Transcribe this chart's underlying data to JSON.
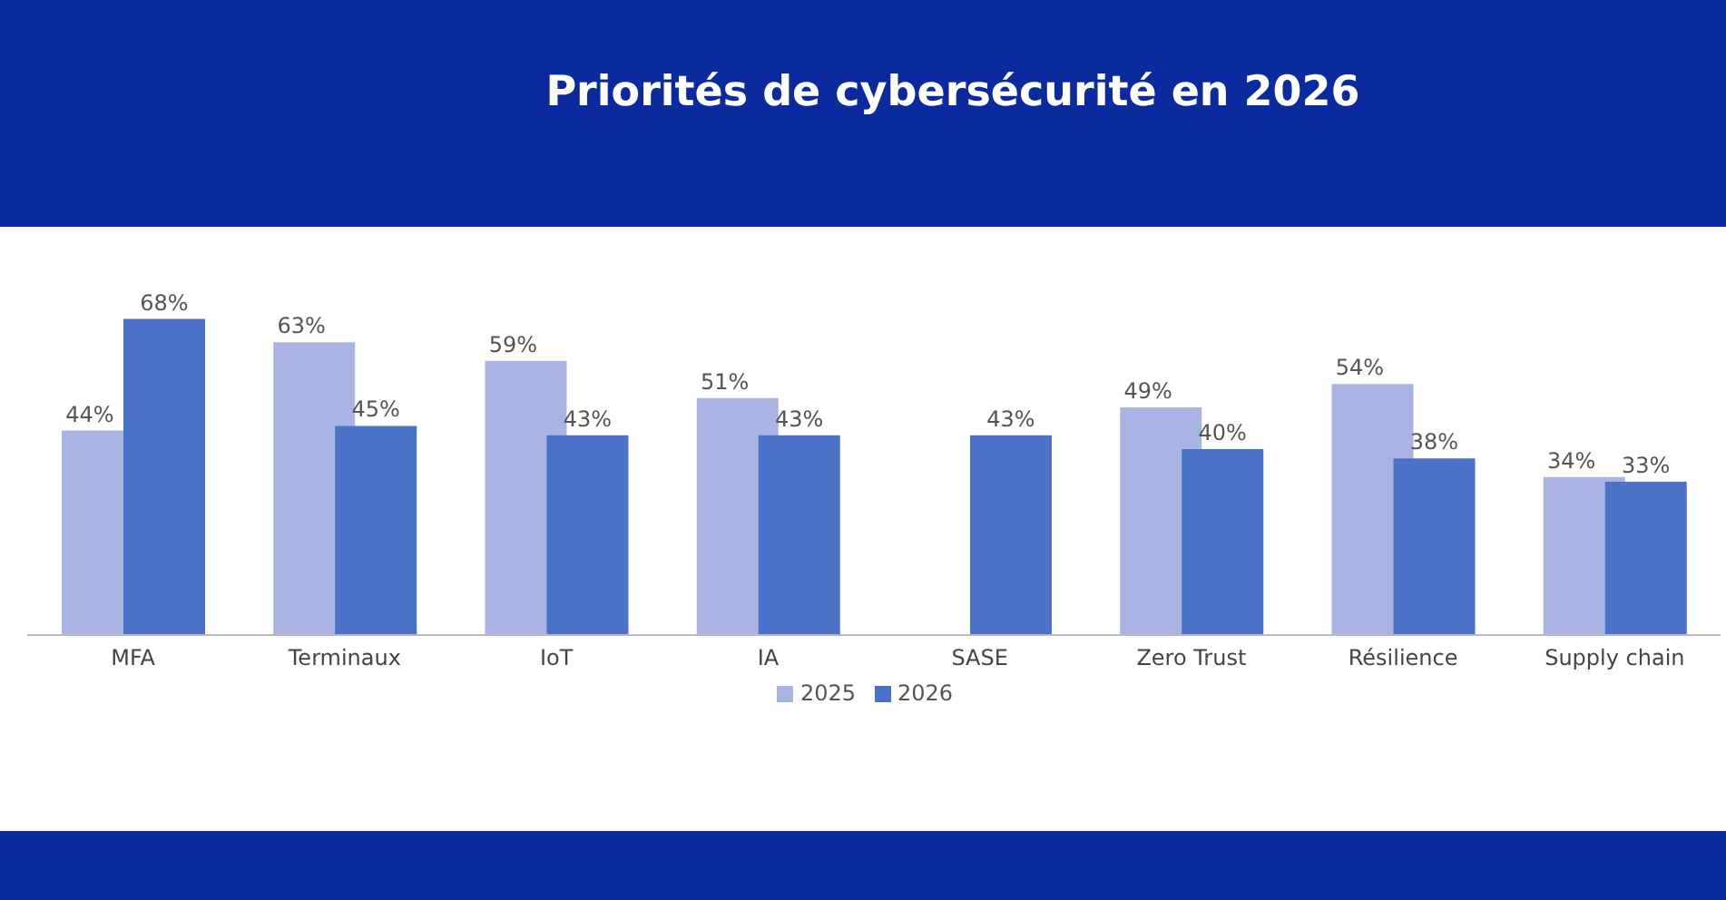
{
  "chart_data": {
    "type": "bar",
    "title": "Priorités de cybersécurité en 2026",
    "categories": [
      "MFA",
      "Terminaux",
      "IoT",
      "IA",
      "SASE",
      "Zero Trust",
      "Résilience",
      "Supply chain"
    ],
    "series": [
      {
        "name": "2025",
        "color": "#aab4e3",
        "values": [
          44,
          63,
          59,
          51,
          null,
          49,
          54,
          34
        ],
        "value_labels": [
          "44%",
          "63%",
          "59%",
          "51%",
          null,
          "49%",
          "54%",
          "34%"
        ]
      },
      {
        "name": "2026",
        "color": "#4a72c9",
        "values": [
          68,
          45,
          43,
          43,
          43,
          40,
          38,
          33
        ],
        "value_labels": [
          "68%",
          "45%",
          "43%",
          "43%",
          "43%",
          "40%",
          "38%",
          "33%"
        ]
      }
    ],
    "legend": "bottom",
    "grid": false
  }
}
